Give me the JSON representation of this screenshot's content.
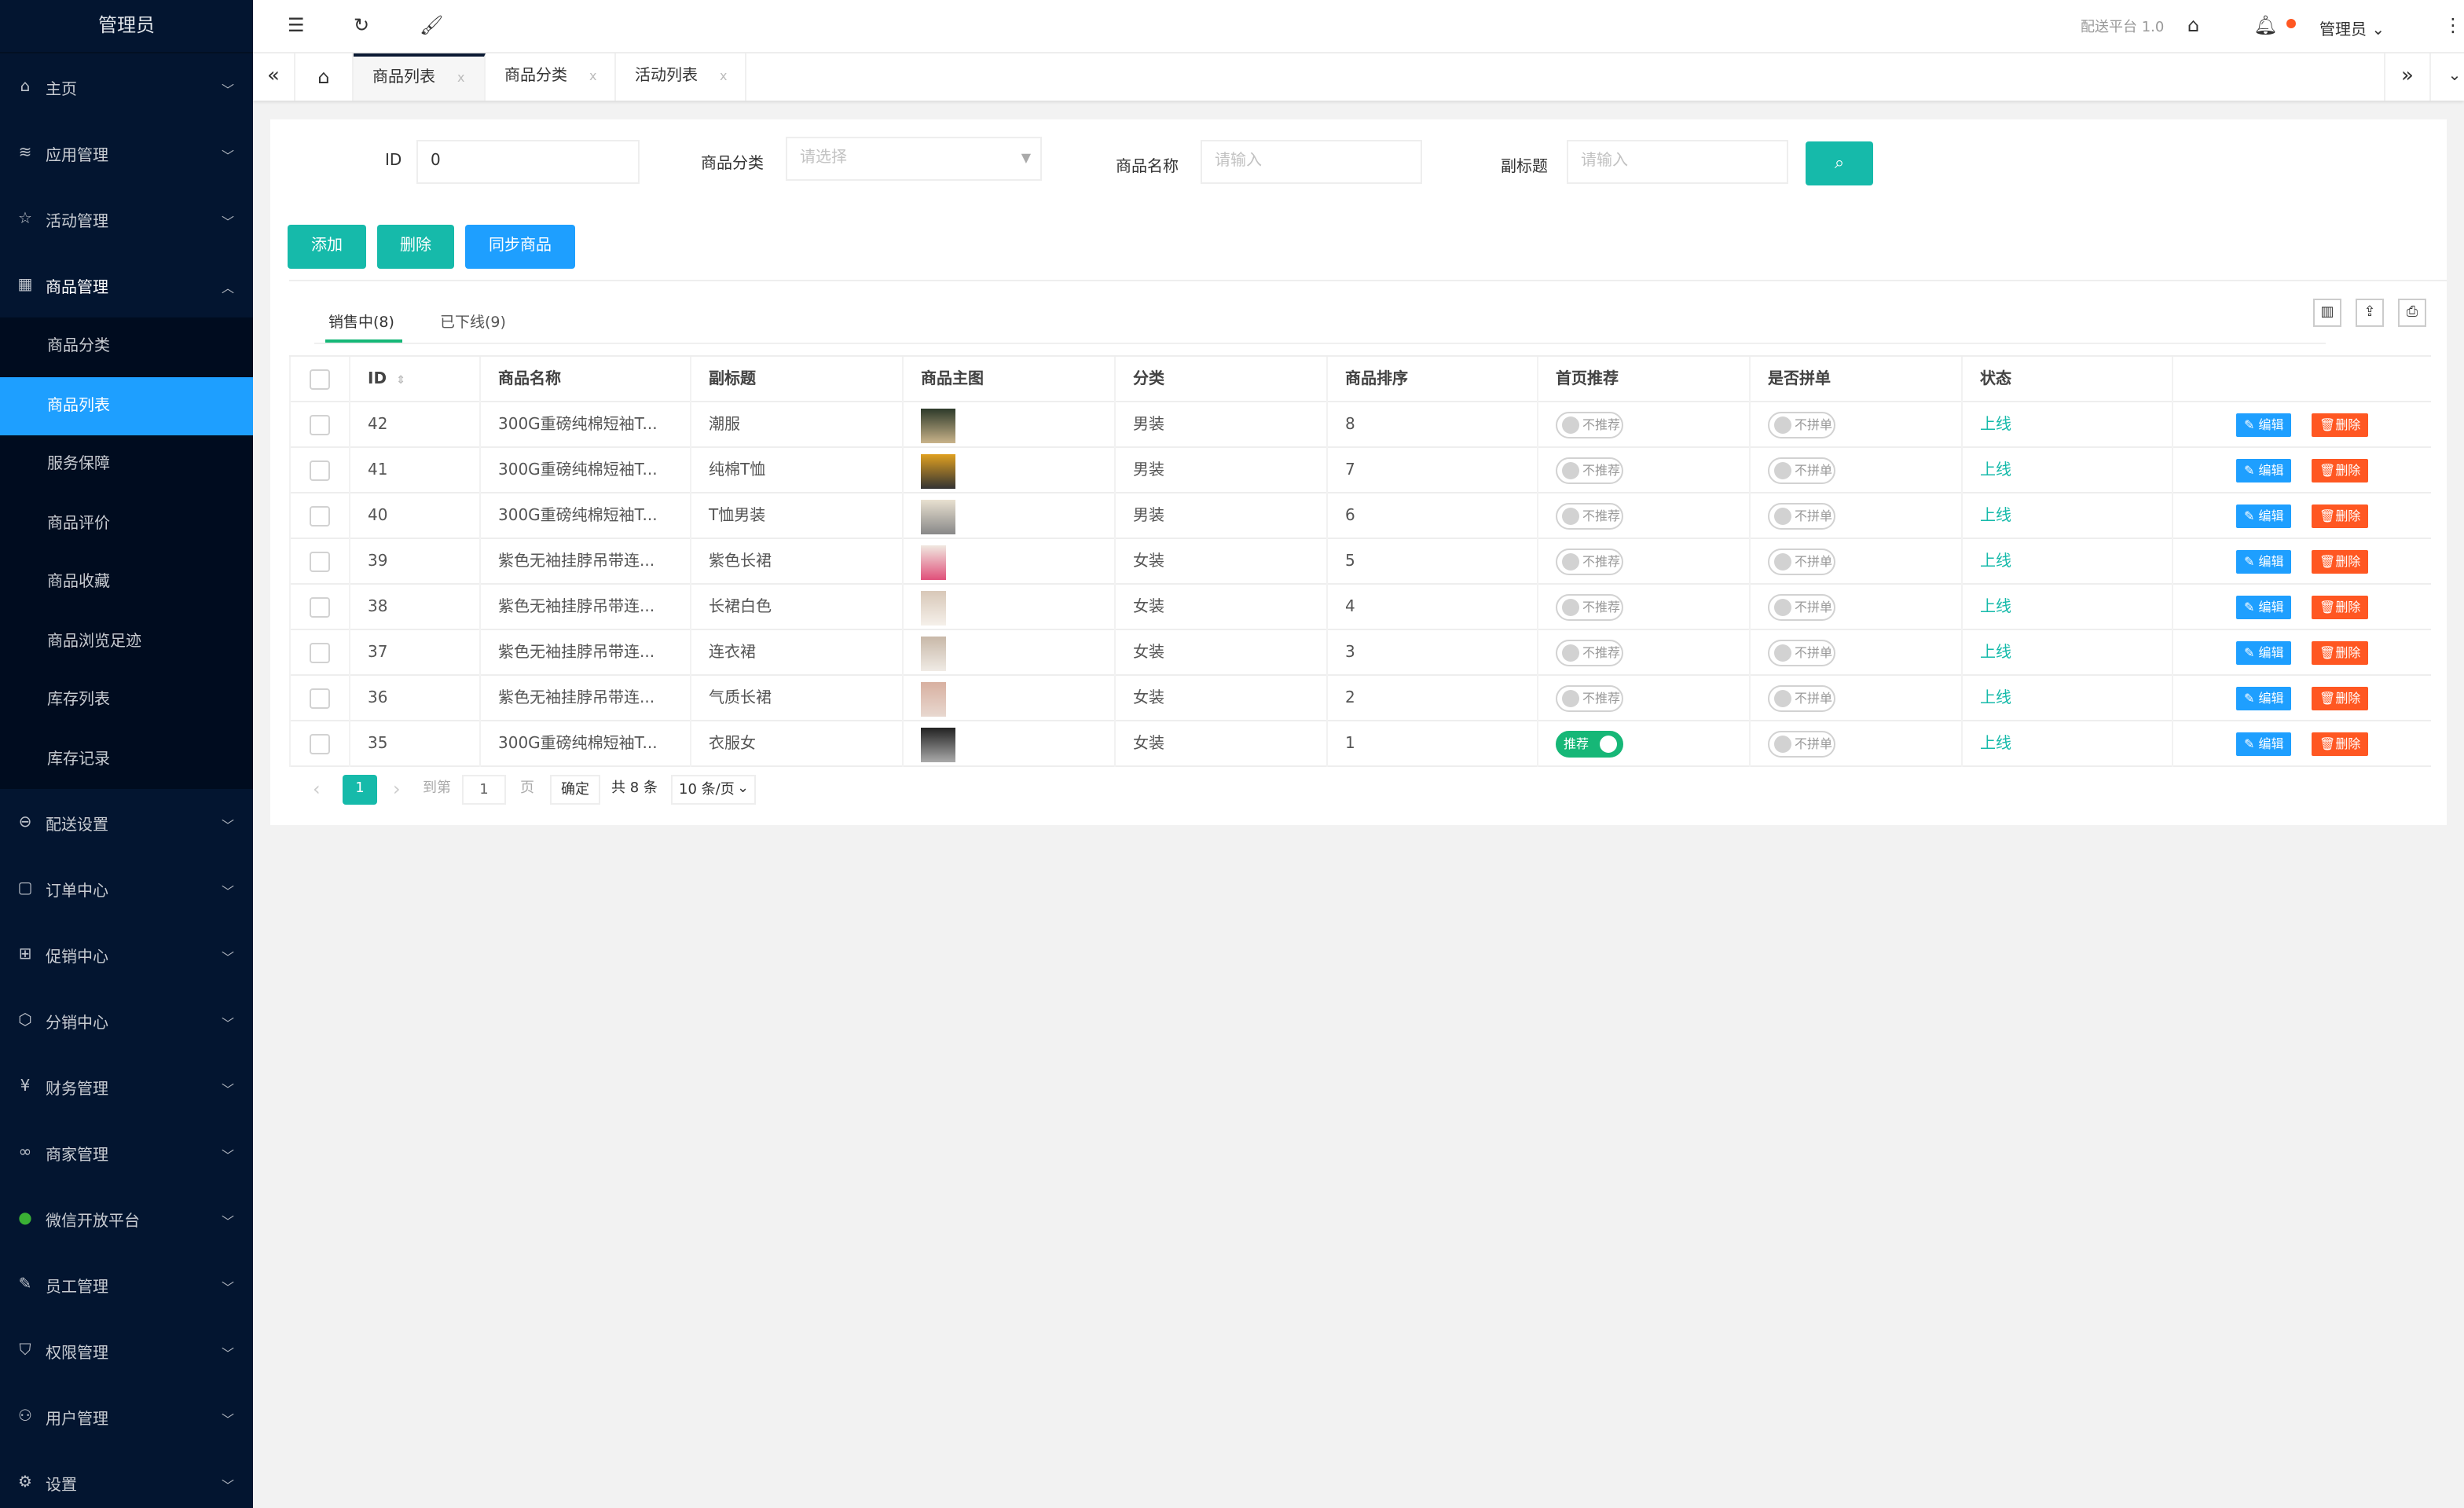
{
  "sidebar": {
    "brand": "管理员",
    "items_top": [
      {
        "label": "主页",
        "icon": "home-icon"
      },
      {
        "label": "应用管理",
        "icon": "layers-icon"
      },
      {
        "label": "活动管理",
        "icon": "star-icon"
      },
      {
        "label": "商品管理",
        "icon": "apps-icon"
      }
    ],
    "sub_items": [
      "商品分类",
      "商品列表",
      "服务保障",
      "商品评价",
      "商品收藏",
      "商品浏览足迹",
      "库存列表",
      "库存记录"
    ],
    "active_sub": "商品列表",
    "items_bottom": [
      {
        "label": "配送设置",
        "icon": "delivery-icon"
      },
      {
        "label": "订单中心",
        "icon": "file-icon"
      },
      {
        "label": "促销中心",
        "icon": "gift-icon"
      },
      {
        "label": "分销中心",
        "icon": "cube-icon"
      },
      {
        "label": "财务管理",
        "icon": "yen-icon"
      },
      {
        "label": "商家管理",
        "icon": "link-icon"
      },
      {
        "label": "微信开放平台",
        "icon": "wechat-icon"
      },
      {
        "label": "员工管理",
        "icon": "staff-icon"
      },
      {
        "label": "权限管理",
        "icon": "shield-icon"
      },
      {
        "label": "用户管理",
        "icon": "user-icon"
      },
      {
        "label": "设置",
        "icon": "gear-icon"
      }
    ]
  },
  "header": {
    "platform": "配送平台 1.0",
    "user": "管理员",
    "notify_color": "#FF5722"
  },
  "tabs": [
    {
      "label": "商品列表",
      "active": true
    },
    {
      "label": "商品分类"
    },
    {
      "label": "活动列表"
    }
  ],
  "filters": {
    "id_label": "ID",
    "id_value": "0",
    "cat_label": "商品分类",
    "cat_placeholder": "请选择",
    "name_label": "商品名称",
    "name_placeholder": "请输入",
    "sub_label": "副标题",
    "sub_placeholder": "请输入"
  },
  "actions": {
    "add": "添加",
    "delete": "删除",
    "sync": "同步商品"
  },
  "status_tabs": [
    {
      "label": "销售中(8)",
      "active": true
    },
    {
      "label": "已下线(9)"
    }
  ],
  "columns": [
    "ID",
    "商品名称",
    "副标题",
    "商品主图",
    "分类",
    "商品排序",
    "首页推荐",
    "是否拼单",
    "状态",
    ""
  ],
  "rows": [
    {
      "id": "42",
      "name": "300G重磅纯棉短袖T...",
      "subtitle": "潮服",
      "category": "男装",
      "sort": "8",
      "recommend": false,
      "recommend_label": "不推荐",
      "group": "不拼单",
      "status": "上线",
      "img": [
        "#2d3a2a",
        "#c9b38a"
      ]
    },
    {
      "id": "41",
      "name": "300G重磅纯棉短袖T...",
      "subtitle": "纯棉T恤",
      "category": "男装",
      "sort": "7",
      "recommend": false,
      "recommend_label": "不推荐",
      "group": "不拼单",
      "status": "上线",
      "img": [
        "#e0a020",
        "#333"
      ]
    },
    {
      "id": "40",
      "name": "300G重磅纯棉短袖T...",
      "subtitle": "T恤男装",
      "category": "男装",
      "sort": "6",
      "recommend": false,
      "recommend_label": "不推荐",
      "group": "不拼单",
      "status": "上线",
      "img": [
        "#e8e0d0",
        "#888"
      ]
    },
    {
      "id": "39",
      "name": "紫色无袖挂脖吊带连...",
      "subtitle": "紫色长裙",
      "category": "女装",
      "sort": "5",
      "recommend": false,
      "recommend_label": "不推荐",
      "group": "不拼单",
      "status": "上线",
      "img": [
        "#f0e8e0",
        "#e0507a"
      ]
    },
    {
      "id": "38",
      "name": "紫色无袖挂脖吊带连...",
      "subtitle": "长裙白色",
      "category": "女装",
      "sort": "4",
      "recommend": false,
      "recommend_label": "不推荐",
      "group": "不拼单",
      "status": "上线",
      "img": [
        "#d8c8b8",
        "#f5f0ea"
      ]
    },
    {
      "id": "37",
      "name": "紫色无袖挂脖吊带连...",
      "subtitle": "连衣裙",
      "category": "女装",
      "sort": "3",
      "recommend": false,
      "recommend_label": "不推荐",
      "group": "不拼单",
      "status": "上线",
      "img": [
        "#c8b8a8",
        "#f0ebe5"
      ]
    },
    {
      "id": "36",
      "name": "紫色无袖挂脖吊带连...",
      "subtitle": "气质长裙",
      "category": "女装",
      "sort": "2",
      "recommend": false,
      "recommend_label": "不推荐",
      "group": "不拼单",
      "status": "上线",
      "img": [
        "#d8b0a0",
        "#e8d8d0"
      ]
    },
    {
      "id": "35",
      "name": "300G重磅纯棉短袖T...",
      "subtitle": "衣服女",
      "category": "女装",
      "sort": "1",
      "recommend": true,
      "recommend_label": "推荐",
      "group": "不拼单",
      "status": "上线",
      "img": [
        "#222",
        "#aaa"
      ]
    }
  ],
  "row_actions": {
    "edit": "编辑",
    "delete": "删除"
  },
  "pagination": {
    "current": "1",
    "goto": "到第",
    "page_value": "1",
    "page_unit": "页",
    "confirm": "确定",
    "total": "共 8 条",
    "page_size": "10 条/页"
  },
  "colors": {
    "primary": "#16baaa",
    "blue": "#1E9FFF",
    "danger": "#FF5722",
    "sidebar": "#031530"
  }
}
